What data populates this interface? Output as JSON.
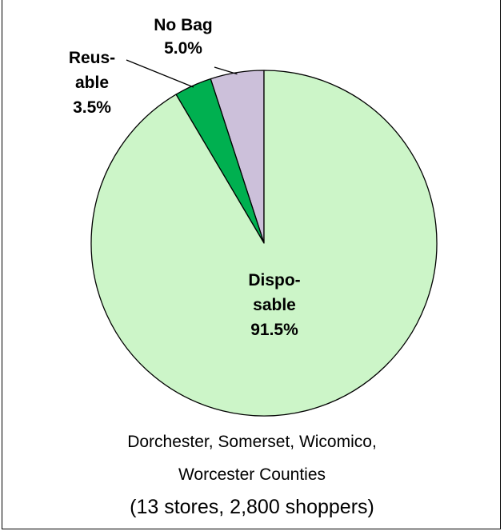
{
  "chart_data": {
    "type": "pie",
    "slices": [
      {
        "label_lines": [
          "No Bag",
          "5.0%"
        ],
        "value": 5.0,
        "color": "#ccc0da"
      },
      {
        "label_lines": [
          "Reus-",
          "able",
          "3.5%"
        ],
        "value": 3.5,
        "color": "#00b050"
      },
      {
        "label_lines": [
          "Dispo-",
          "sable",
          "91.5%"
        ],
        "value": 91.5,
        "color": "#ccf5c8"
      }
    ],
    "caption_lines": [
      "Dorchester, Somerset, Wicomico,",
      "Worcester Counties",
      "(13 stores, 2,800 shoppers)"
    ],
    "legend": "none"
  }
}
